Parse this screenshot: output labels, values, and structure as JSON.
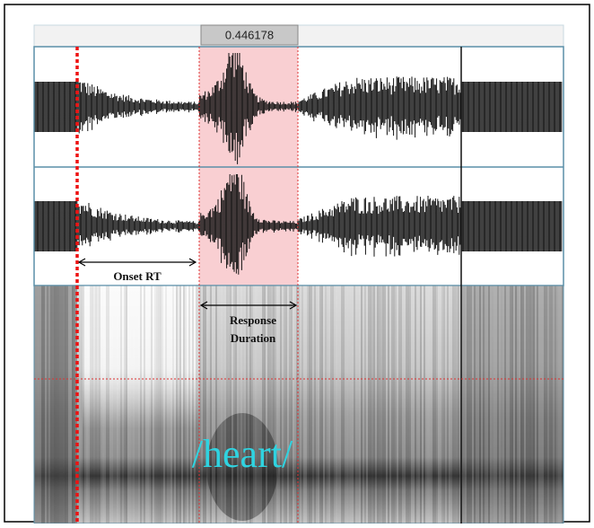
{
  "selection": {
    "duration": "0.446178"
  },
  "annotations": {
    "onset_rt": "Onset RT",
    "response_duration": [
      "Response",
      "Duration"
    ]
  },
  "transcription": "/heart/"
}
